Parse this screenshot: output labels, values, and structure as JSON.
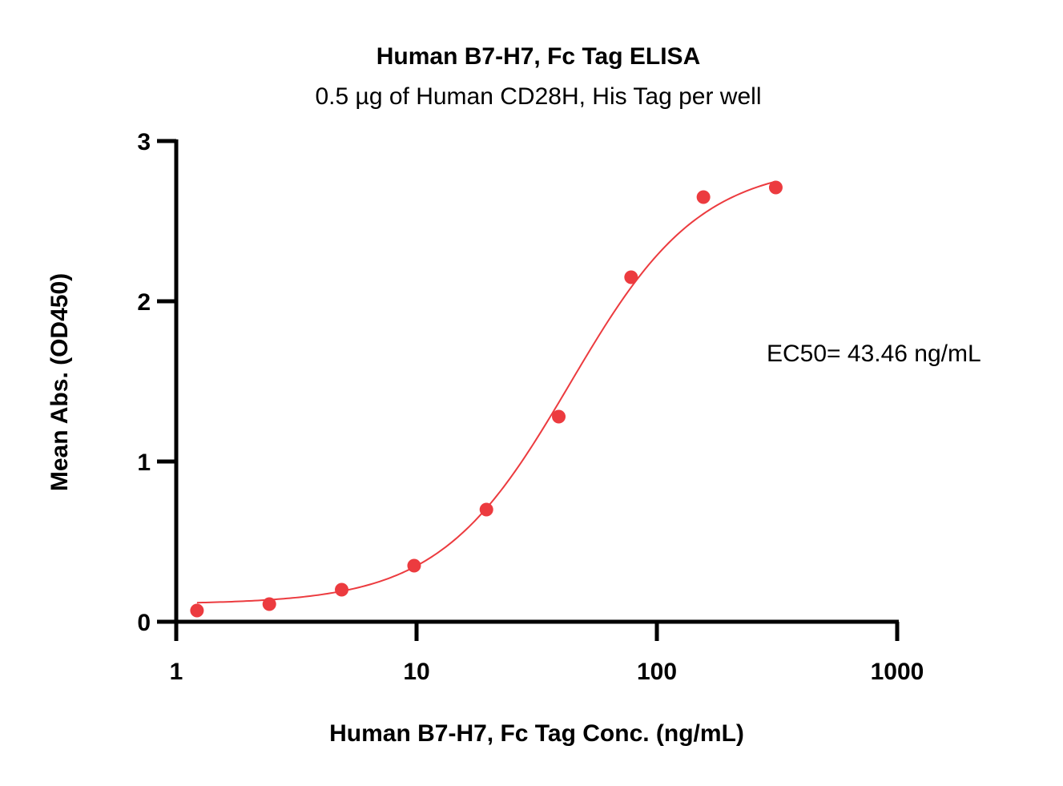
{
  "chart_data": {
    "type": "scatter",
    "title": "Human B7-H7, Fc Tag ELISA",
    "subtitle": "0.5 µg of Human CD28H, His Tag per well",
    "xlabel": "Human B7-H7, Fc Tag Conc. (ng/mL)",
    "ylabel": "Mean Abs. (OD450)",
    "xscale": "log",
    "xlim": [
      1,
      1000
    ],
    "ylim": [
      0,
      3
    ],
    "x_ticks": [
      1,
      10,
      100,
      1000
    ],
    "x_tick_labels": [
      "1",
      "10",
      "100",
      "1000"
    ],
    "y_ticks": [
      0,
      1,
      2,
      3
    ],
    "y_tick_labels": [
      "0",
      "1",
      "2",
      "3"
    ],
    "grid": false,
    "annotation": "EC50= 43.46 ng/mL",
    "color": "#ec3b3f",
    "series": [
      {
        "x": [
          1.22,
          2.44,
          4.88,
          9.77,
          19.53,
          39.06,
          78.13,
          156.25,
          312.5
        ],
        "y": [
          0.07,
          0.11,
          0.2,
          0.35,
          0.7,
          1.28,
          2.15,
          2.65,
          2.71
        ]
      }
    ],
    "fit": {
      "model": "4PL",
      "bottom": 0.11,
      "top": 2.86,
      "ec50": 43.46,
      "hill": 1.6,
      "x_range": [
        1.22,
        312.5
      ]
    }
  }
}
